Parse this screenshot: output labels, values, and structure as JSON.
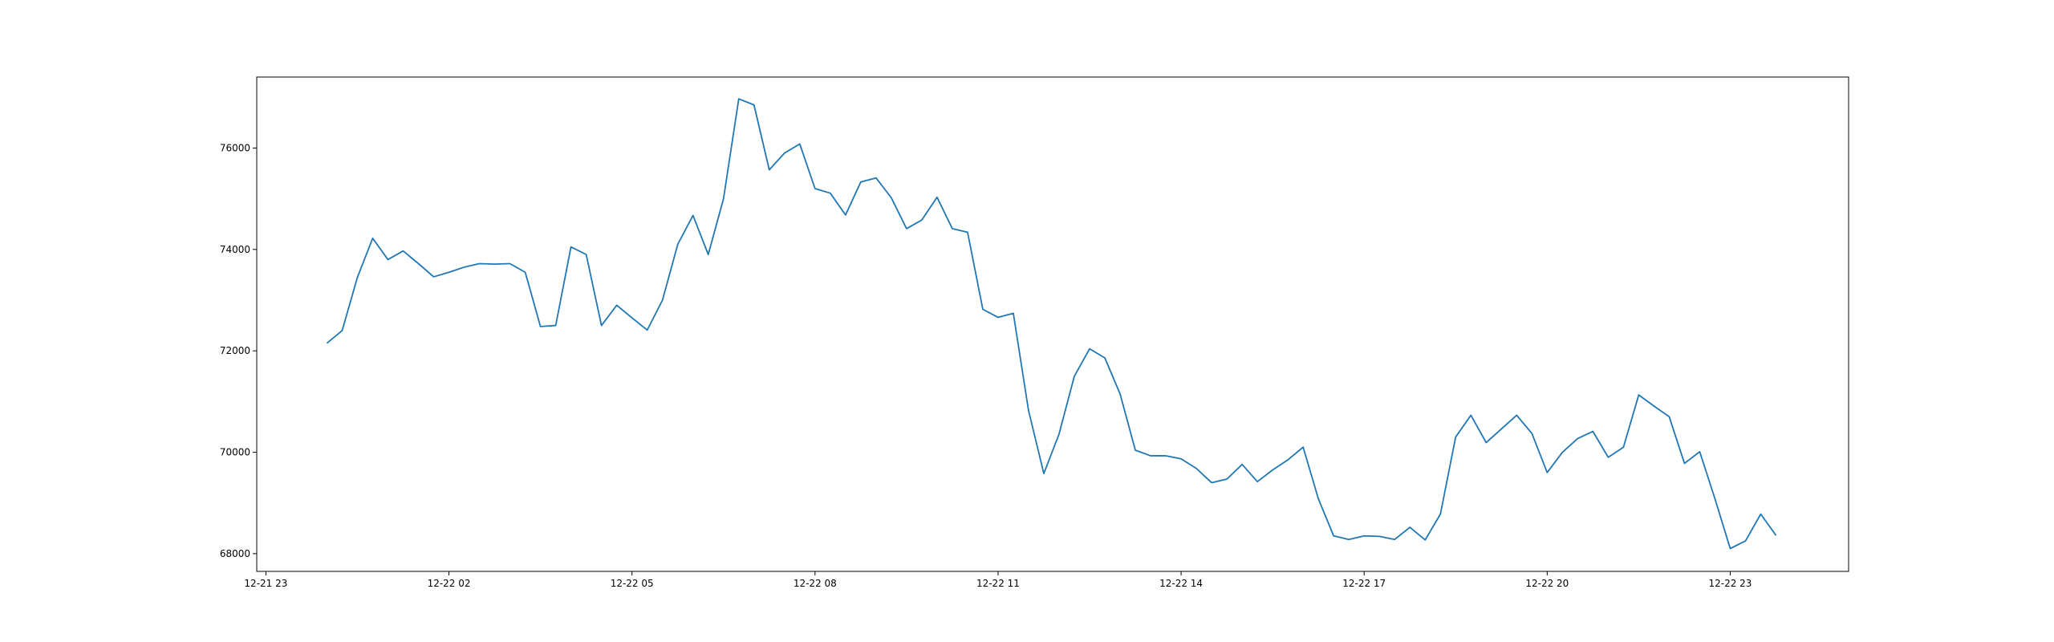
{
  "chart_data": {
    "type": "line",
    "title": "",
    "xlabel": "",
    "ylabel": "",
    "grid": false,
    "legend": "none",
    "colors": {
      "line": "#1f77b4",
      "axis": "#000000",
      "background": "#ffffff"
    },
    "x_tick_labels": [
      "12-21 23",
      "12-22 02",
      "12-22 05",
      "12-22 08",
      "12-22 11",
      "12-22 14",
      "12-22 17",
      "12-22 20",
      "12-22 23"
    ],
    "x_tick_hours": [
      0,
      3,
      6,
      9,
      12,
      15,
      18,
      21,
      24
    ],
    "xlim_hours": [
      -0.15,
      25.94
    ],
    "y_ticks": [
      68000,
      70000,
      72000,
      74000,
      76000
    ],
    "y_tick_labels": [
      "68000",
      "70000",
      "72000",
      "74000",
      "76000"
    ],
    "ylim": [
      67650,
      77400
    ],
    "series": [
      {
        "name": "",
        "x_start_hour": 1.0,
        "x_step_hours": 0.25,
        "values": [
          72150,
          72400,
          73450,
          74220,
          73800,
          73970,
          73720,
          73460,
          73550,
          73650,
          73720,
          73710,
          73720,
          73550,
          72480,
          72500,
          74050,
          73900,
          72500,
          72900,
          72650,
          72410,
          73000,
          74100,
          74670,
          73900,
          75000,
          76970,
          76850,
          75570,
          75900,
          76080,
          75200,
          75110,
          74680,
          75330,
          75410,
          75020,
          74410,
          74580,
          75030,
          74410,
          74340,
          72820,
          72660,
          72740,
          70820,
          69580,
          70360,
          71500,
          72040,
          71860,
          71150,
          70040,
          69930,
          69930,
          69870,
          69680,
          69400,
          69470,
          69760,
          69420,
          69650,
          69850,
          70100,
          69080,
          68350,
          68280,
          68350,
          68340,
          68280,
          68520,
          68270,
          68780,
          70300,
          70730,
          70190,
          70460,
          70730,
          70370,
          69600,
          70000,
          70270,
          70410,
          69900,
          70100,
          71130,
          70910,
          70700,
          69780,
          70010,
          69080,
          68100,
          68250,
          68780,
          68360
        ]
      }
    ]
  }
}
